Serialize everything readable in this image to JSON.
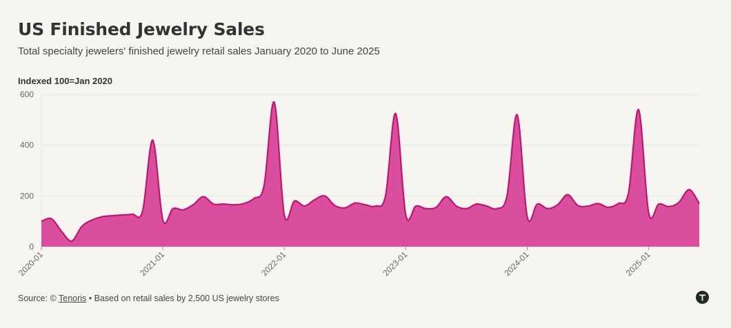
{
  "header": {
    "title": "US Finished Jewelry Sales",
    "subtitle": "Total specialty jewelers' finished jewelry retail sales January 2020 to June 2025",
    "axis_note": "Indexed 100=Jan 2020"
  },
  "footer": {
    "source_prefix": "Source: © ",
    "source_link": "Tenoris",
    "source_suffix": " • Based on retail sales by 2,500 US jewelry stores",
    "logo_icon": "tenoris-logo-icon"
  },
  "colors": {
    "fill": "#d94f9e",
    "line": "#c4136e",
    "grid": "#e8e6e0",
    "background": "#f7f5ef"
  },
  "chart_data": {
    "type": "area",
    "title": "US Finished Jewelry Sales",
    "subtitle": "Total specialty jewelers' finished jewelry retail sales January 2020 to June 2025",
    "ylabel": "Indexed 100=Jan 2020",
    "xlabel": "",
    "ylim": [
      0,
      600
    ],
    "yticks": [
      0,
      200,
      400,
      600
    ],
    "xticks": [
      "2020-01",
      "2021-01",
      "2022-01",
      "2023-01",
      "2024-01",
      "2025-01"
    ],
    "grid": true,
    "x": [
      "2020-01",
      "2020-02",
      "2020-03",
      "2020-04",
      "2020-05",
      "2020-06",
      "2020-07",
      "2020-08",
      "2020-09",
      "2020-10",
      "2020-11",
      "2020-12",
      "2021-01",
      "2021-02",
      "2021-03",
      "2021-04",
      "2021-05",
      "2021-06",
      "2021-07",
      "2021-08",
      "2021-09",
      "2021-10",
      "2021-11",
      "2021-12",
      "2022-01",
      "2022-02",
      "2022-03",
      "2022-04",
      "2022-05",
      "2022-06",
      "2022-07",
      "2022-08",
      "2022-09",
      "2022-10",
      "2022-11",
      "2022-12",
      "2023-01",
      "2023-02",
      "2023-03",
      "2023-04",
      "2023-05",
      "2023-06",
      "2023-07",
      "2023-08",
      "2023-09",
      "2023-10",
      "2023-11",
      "2023-12",
      "2024-01",
      "2024-02",
      "2024-03",
      "2024-04",
      "2024-05",
      "2024-06",
      "2024-07",
      "2024-08",
      "2024-09",
      "2024-10",
      "2024-11",
      "2024-12",
      "2025-01",
      "2025-02",
      "2025-03",
      "2025-04",
      "2025-05",
      "2025-06"
    ],
    "series": [
      {
        "values": [
          100,
          110,
          60,
          22,
          80,
          105,
          118,
          122,
          125,
          128,
          140,
          420,
          105,
          150,
          145,
          165,
          197,
          168,
          168,
          165,
          170,
          190,
          240,
          570,
          125,
          180,
          160,
          185,
          200,
          162,
          153,
          172,
          165,
          160,
          200,
          525,
          125,
          160,
          150,
          155,
          197,
          160,
          150,
          168,
          160,
          150,
          200,
          520,
          118,
          168,
          150,
          165,
          205,
          162,
          160,
          170,
          155,
          170,
          210,
          540,
          133,
          168,
          158,
          175,
          225,
          170
        ]
      }
    ]
  }
}
